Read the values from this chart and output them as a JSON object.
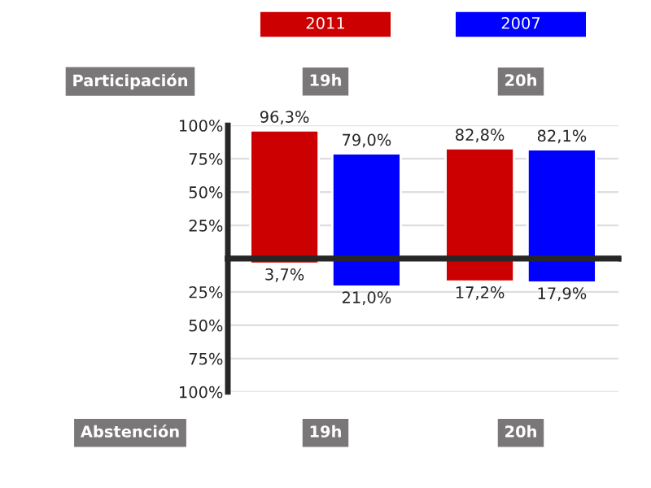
{
  "chart_data": [
    {
      "type": "bar",
      "categories": [
        "19h",
        "20h"
      ],
      "series": [
        {
          "name": "2011",
          "color": "#cc0000",
          "values": [
            96.3,
            82.8
          ],
          "value_labels": [
            "96,3%",
            "82,8%"
          ]
        },
        {
          "name": "2007",
          "color": "#0000ff",
          "values": [
            79.0,
            82.1
          ],
          "value_labels": [
            "79,0%",
            "82,1%"
          ]
        }
      ],
      "ylim": [
        0,
        100
      ],
      "yticks": [
        {
          "value": 25,
          "label": "25%"
        },
        {
          "value": 50,
          "label": "50%"
        },
        {
          "value": 75,
          "label": "75%"
        },
        {
          "value": 100,
          "label": "100%"
        }
      ],
      "grid": "y",
      "legend": "top",
      "annotations": [
        "Participación"
      ]
    },
    {
      "type": "bar",
      "categories": [
        "19h",
        "20h"
      ],
      "series": [
        {
          "color": "#cc0000",
          "values": [
            3.7,
            17.2
          ],
          "value_labels": [
            "3,7%",
            "17,2%"
          ]
        },
        {
          "color": "#0000ff",
          "values": [
            21.0,
            17.9
          ],
          "value_labels": [
            "21,0%",
            "17,9%"
          ]
        }
      ],
      "ylim": [
        100,
        0
      ],
      "yticks": [
        {
          "value": 25,
          "label": "25%"
        },
        {
          "value": 50,
          "label": "50%"
        },
        {
          "value": 75,
          "label": "75%"
        },
        {
          "value": 100,
          "label": "100%"
        }
      ],
      "grid": "y",
      "annotations": [
        "Abstención"
      ]
    }
  ]
}
